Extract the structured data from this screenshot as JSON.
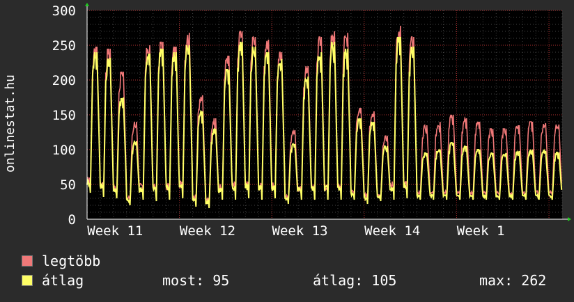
{
  "watermark": "onlinestat.hu",
  "colors": {
    "background": "#2b2b2b",
    "plot_background": "#000000",
    "grid": "#b03030",
    "legtobb": "#f07878",
    "atlag": "#ffff66",
    "axis": "#ffffff"
  },
  "legend": {
    "items": [
      {
        "label": "legtöbb",
        "color": "#f07878"
      },
      {
        "label": "átlag",
        "color": "#ffff66"
      }
    ],
    "stats": {
      "most": "most: 95",
      "atlag": "átlag: 105",
      "max": "max: 262"
    }
  },
  "chart_data": {
    "type": "line",
    "title": "",
    "xlabel": "",
    "ylabel": "",
    "ylim": [
      0,
      300
    ],
    "y_ticks": [
      "0",
      "50",
      "100",
      "150",
      "200",
      "250",
      "300"
    ],
    "x_tick_labels": [
      "Week 11",
      "Week 12",
      "Week 13",
      "Week 14",
      "Week 1"
    ],
    "x_days": 36,
    "grid": true,
    "legend_position": "bottom",
    "series": [
      {
        "name": "legtöbb",
        "daily_peaks": [
          248,
          245,
          212,
          140,
          250,
          255,
          248,
          268,
          178,
          145,
          235,
          270,
          262,
          258,
          240,
          128,
          220,
          262,
          270,
          268,
          160,
          155,
          120,
          278,
          262,
          135,
          140,
          150,
          145,
          140,
          130,
          130,
          135,
          140,
          138,
          136
        ],
        "daily_lows": [
          40,
          35,
          32,
          22,
          30,
          28,
          30,
          32,
          20,
          18,
          30,
          30,
          32,
          30,
          32,
          25,
          30,
          30,
          30,
          30,
          30,
          25,
          28,
          30,
          32,
          30,
          30,
          30,
          30,
          30,
          30,
          30,
          30,
          30,
          30,
          30
        ]
      },
      {
        "name": "átlag",
        "daily_peaks": [
          240,
          232,
          175,
          112,
          238,
          245,
          240,
          250,
          155,
          130,
          215,
          255,
          248,
          240,
          230,
          108,
          205,
          240,
          255,
          245,
          145,
          140,
          105,
          262,
          248,
          95,
          100,
          110,
          105,
          100,
          95,
          95,
          98,
          100,
          98,
          96
        ],
        "daily_lows": [
          38,
          32,
          30,
          20,
          28,
          26,
          28,
          30,
          18,
          16,
          28,
          28,
          30,
          28,
          30,
          22,
          28,
          28,
          28,
          28,
          28,
          22,
          26,
          28,
          30,
          28,
          28,
          28,
          28,
          28,
          28,
          28,
          28,
          28,
          28,
          28
        ]
      }
    ]
  }
}
